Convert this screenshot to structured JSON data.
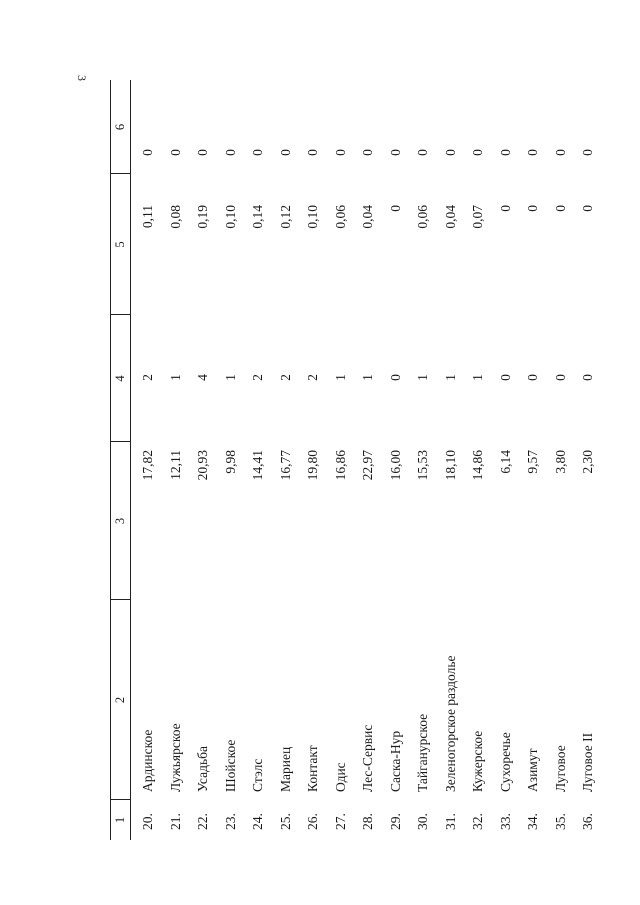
{
  "page_number": "3",
  "table": {
    "headers": [
      "1",
      "2",
      "3",
      "4",
      "5",
      "6"
    ],
    "rows": [
      {
        "n": "20.",
        "name": "Ардинское",
        "c3": "17,82",
        "c4": "2",
        "c5": "0,11",
        "c6": "0"
      },
      {
        "n": "21.",
        "name": "Лужьярское",
        "c3": "12,11",
        "c4": "1",
        "c5": "0,08",
        "c6": "0"
      },
      {
        "n": "22.",
        "name": "Усадьба",
        "c3": "20,93",
        "c4": "4",
        "c5": "0,19",
        "c6": "0"
      },
      {
        "n": "23.",
        "name": "Шойское",
        "c3": "9,98",
        "c4": "1",
        "c5": "0,10",
        "c6": "0"
      },
      {
        "n": "24.",
        "name": "Стэлс",
        "c3": "14,41",
        "c4": "2",
        "c5": "0,14",
        "c6": "0"
      },
      {
        "n": "25.",
        "name": "Мариец",
        "c3": "16,77",
        "c4": "2",
        "c5": "0,12",
        "c6": "0"
      },
      {
        "n": "26.",
        "name": "Контакт",
        "c3": "19,80",
        "c4": "2",
        "c5": "0,10",
        "c6": "0"
      },
      {
        "n": "27.",
        "name": "Одис",
        "c3": "16,86",
        "c4": "1",
        "c5": "0,06",
        "c6": "0"
      },
      {
        "n": "28.",
        "name": "Лес-Сервис",
        "c3": "22,97",
        "c4": "1",
        "c5": "0,04",
        "c6": "0"
      },
      {
        "n": "29.",
        "name": "Саска-Нур",
        "c3": "16,00",
        "c4": "0",
        "c5": "0",
        "c6": "0"
      },
      {
        "n": "30.",
        "name": "Тайгануpское",
        "c3": "15,53",
        "c4": "1",
        "c5": "0,06",
        "c6": "0"
      },
      {
        "n": "31.",
        "name": "Зеленогорское раздолье",
        "c3": "18,10",
        "c4": "1",
        "c5": "0,04",
        "c6": "0"
      },
      {
        "n": "32.",
        "name": "Кужерское",
        "c3": "14,86",
        "c4": "1",
        "c5": "0,07",
        "c6": "0"
      },
      {
        "n": "33.",
        "name": "Сухоречье",
        "c3": "6,14",
        "c4": "0",
        "c5": "0",
        "c6": "0"
      },
      {
        "n": "34.",
        "name": "Азимут",
        "c3": "9,57",
        "c4": "0",
        "c5": "0",
        "c6": "0"
      },
      {
        "n": "35.",
        "name": "Луговое",
        "c3": "3,80",
        "c4": "0",
        "c5": "0",
        "c6": "0"
      },
      {
        "n": "36.",
        "name": "Луговое II",
        "c3": "2,30",
        "c4": "0",
        "c5": "0",
        "c6": "0"
      }
    ]
  }
}
